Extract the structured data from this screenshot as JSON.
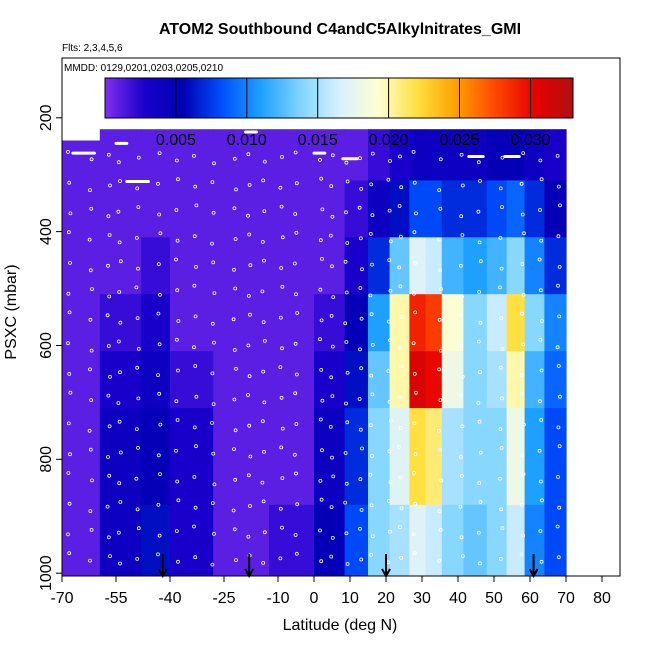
{
  "chart_data": {
    "type": "heatmap",
    "title": "ATOM2 Southbound C4andC5Alkylnitrates_GMI",
    "subtitle": "Flts: 2,3,4,5,6",
    "annotation": "MMDD: 0129,0201,0203,0205,0210",
    "xlabel": "Latitude (deg N)",
    "ylabel": "PSXC (mbar)",
    "xlim": [
      -70,
      85
    ],
    "ylim": [
      1005,
      95
    ],
    "x_ticks": [
      -70,
      -55,
      -40,
      -25,
      -10,
      0,
      10,
      20,
      30,
      40,
      50,
      60,
      70,
      80
    ],
    "x_tick_labels": [
      "-70",
      "-55",
      "-40",
      "-25",
      "-10",
      "0",
      "10",
      "20",
      "30",
      "40",
      "50",
      "60",
      "70",
      "80"
    ],
    "y_ticks": [
      200,
      400,
      600,
      800,
      1000
    ],
    "y_tick_labels": [
      "200",
      "400",
      "600",
      "800",
      "1000"
    ],
    "colorbar": {
      "range": [
        0,
        0.033
      ],
      "ticks": [
        0.005,
        0.01,
        0.015,
        0.02,
        0.025,
        0.03
      ],
      "tick_labels": [
        "0.005",
        "0.010",
        "0.015",
        "0.020",
        "0.025",
        "0.030"
      ],
      "colors": [
        "#7f30ef",
        "#1a00cc",
        "#0000b4",
        "#0050ff",
        "#1ea0ff",
        "#80d4ff",
        "#d8f0ff",
        "#ffffd0",
        "#ffe040",
        "#ffa000",
        "#ff4800",
        "#e80000",
        "#b01010"
      ]
    },
    "heat_columns": [
      {
        "lat": -67,
        "top": 240,
        "values": [
          0.001
        ]
      },
      {
        "lat": -52,
        "top": 220,
        "values": [
          0.001,
          0.001,
          0.001,
          0.002,
          0.003,
          0.004,
          0.004
        ]
      },
      {
        "lat": -44,
        "top": 220,
        "values": [
          0.001,
          0.001,
          0.002,
          0.003,
          0.004,
          0.005,
          0.006
        ]
      },
      {
        "lat": -36,
        "top": 220,
        "values": [
          0.001,
          0.001,
          0.001,
          0.001,
          0.002,
          0.003,
          0.003
        ]
      },
      {
        "lat": -20,
        "top": 220,
        "values": [
          0.001
        ]
      },
      {
        "lat": -5,
        "top": 220,
        "values": [
          0.001,
          0.001,
          0.001,
          0.001,
          0.001,
          0.001,
          0.002
        ]
      },
      {
        "lat": 5,
        "top": 220,
        "values": [
          0.001,
          0.001,
          0.001,
          0.002,
          0.003,
          0.004,
          0.005
        ]
      },
      {
        "lat": 12,
        "top": 220,
        "values": [
          0.001,
          0.002,
          0.003,
          0.005,
          0.006,
          0.007,
          0.008
        ]
      },
      {
        "lat": 18,
        "top": 220,
        "values": [
          0.002,
          0.004,
          0.007,
          0.011,
          0.013,
          0.014,
          0.014
        ]
      },
      {
        "lat": 24,
        "top": 220,
        "values": [
          0.003,
          0.006,
          0.013,
          0.02,
          0.02,
          0.017,
          0.015
        ]
      },
      {
        "lat": 29,
        "top": 220,
        "values": [
          0.004,
          0.008,
          0.017,
          0.029,
          0.031,
          0.022,
          0.017
        ]
      },
      {
        "lat": 33,
        "top": 220,
        "values": [
          0.004,
          0.008,
          0.016,
          0.028,
          0.03,
          0.021,
          0.016
        ]
      },
      {
        "lat": 38,
        "top": 220,
        "values": [
          0.004,
          0.007,
          0.012,
          0.019,
          0.018,
          0.015,
          0.014
        ]
      },
      {
        "lat": 45,
        "top": 220,
        "values": [
          0.004,
          0.007,
          0.011,
          0.014,
          0.014,
          0.014,
          0.013
        ]
      },
      {
        "lat": 51,
        "top": 220,
        "values": [
          0.005,
          0.008,
          0.012,
          0.016,
          0.015,
          0.014,
          0.014
        ]
      },
      {
        "lat": 56,
        "top": 220,
        "values": [
          0.005,
          0.009,
          0.014,
          0.022,
          0.02,
          0.018,
          0.016
        ]
      },
      {
        "lat": 61,
        "top": 220,
        "values": [
          0.004,
          0.007,
          0.01,
          0.014,
          0.012,
          0.011,
          0.01
        ]
      },
      {
        "lat": 67,
        "top": 220,
        "values": [
          0.003,
          0.005,
          0.007,
          0.01,
          0.009,
          0.008,
          0.008
        ]
      }
    ],
    "pressure_levels": [
      260,
      360,
      460,
      560,
      660,
      760,
      1000
    ],
    "flight_tracks": [
      {
        "lat_start": -67,
        "lat_end": -61,
        "psxc": 262
      },
      {
        "lat_start": -54,
        "lat_end": -46,
        "psxc": 196
      },
      {
        "lat_start": -52,
        "lat_end": -46,
        "psxc": 312
      },
      {
        "lat_start": -19,
        "lat_end": -16,
        "psxc": 225
      },
      {
        "lat_start": -16,
        "lat_end": -13,
        "psxc": 216
      },
      {
        "lat_start": 8,
        "lat_end": 12,
        "psxc": 272
      },
      {
        "lat_start": 62,
        "lat_end": 68,
        "psxc": 195
      },
      {
        "lat_start": 43,
        "lat_end": 47,
        "psxc": 268
      },
      {
        "lat_start": 53,
        "lat_end": 57,
        "psxc": 268
      },
      {
        "lat_start": -55,
        "lat_end": -52,
        "psxc": 245
      },
      {
        "lat_start": 0,
        "lat_end": 3,
        "psxc": 262
      }
    ],
    "profile_latitudes": [
      -68,
      -62,
      -57,
      -54,
      -49,
      -43,
      -38,
      -33,
      -28,
      -22,
      -18,
      -14,
      -9,
      -5,
      2,
      5,
      9,
      13,
      16,
      21,
      24,
      28,
      35,
      41,
      46,
      52,
      58,
      63,
      68
    ],
    "arrow_latitudes": [
      -42,
      -18,
      20,
      61
    ],
    "grid": false,
    "legend": "colorbar-top"
  }
}
